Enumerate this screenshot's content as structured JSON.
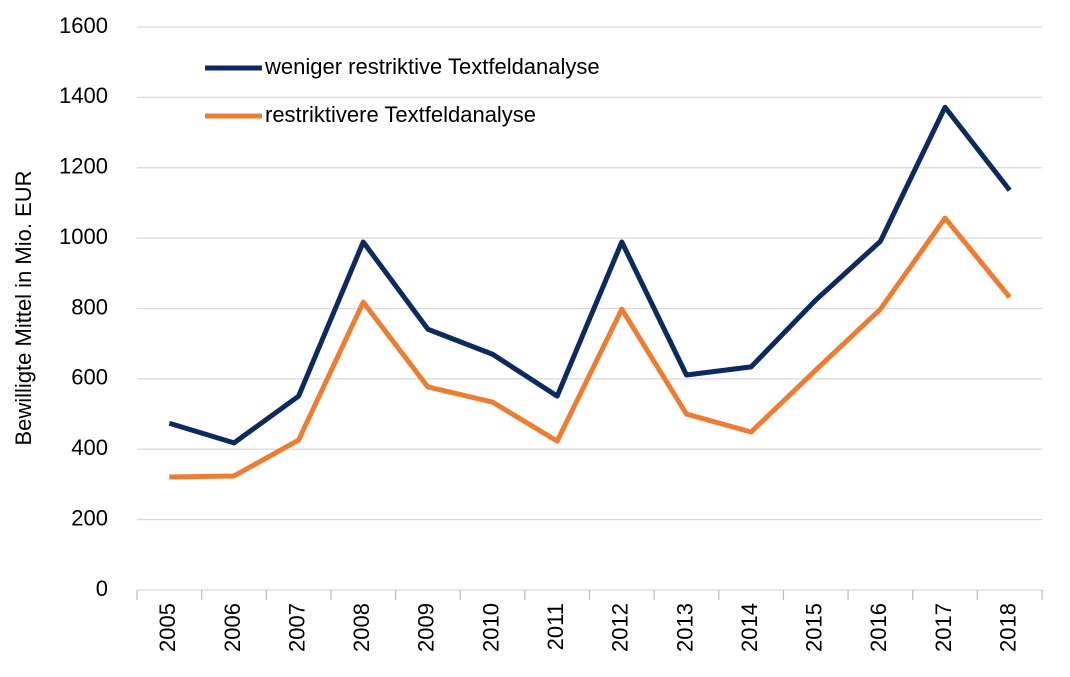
{
  "chart_data": {
    "type": "line",
    "y_label": "Bewilligte Mittel in Mio. EUR",
    "categories": [
      "2005",
      "2006",
      "2007",
      "2008",
      "2009",
      "2010",
      "2011",
      "2012",
      "2013",
      "2014",
      "2015",
      "2016",
      "2017",
      "2018"
    ],
    "series": [
      {
        "name": "weniger restriktive Textfeldanalyse",
        "color": "#0d2a5e",
        "values": [
          474,
          418,
          551,
          989,
          741,
          670,
          551,
          989,
          611,
          634,
          824,
          991,
          1372,
          1136
        ]
      },
      {
        "name": "restriktivere Textfeldanalyse",
        "color": "#ed7d31",
        "values": [
          321,
          324,
          426,
          818,
          577,
          534,
          423,
          798,
          500,
          449,
          625,
          798,
          1057,
          832
        ]
      }
    ],
    "ylim": [
      0,
      1600
    ],
    "yticks": [
      0,
      200,
      400,
      600,
      800,
      1000,
      1200,
      1400,
      1600
    ],
    "grid": true,
    "legend": "top-left"
  }
}
